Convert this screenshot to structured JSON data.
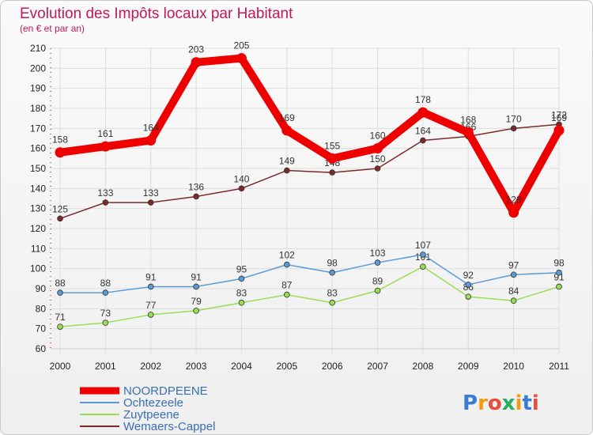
{
  "chart_data": {
    "type": "line",
    "title": "Evolution des Impôts locaux par Habitant",
    "subtitle": "(en € et par an)",
    "x": [
      "2000",
      "2001",
      "2002",
      "2003",
      "2004",
      "2005",
      "2006",
      "2007",
      "2008",
      "2009",
      "2010",
      "2011"
    ],
    "ylim": [
      60,
      210
    ],
    "yticks": [
      60,
      70,
      80,
      90,
      100,
      110,
      120,
      130,
      140,
      150,
      160,
      170,
      180,
      190,
      200,
      210
    ],
    "grid": true,
    "legend_position": "bottom-left",
    "series": [
      {
        "name": "NOORDPEENE",
        "color": "#ee0000",
        "values": [
          158,
          161,
          164,
          203,
          205,
          169,
          155,
          160,
          178,
          168,
          128,
          169
        ]
      },
      {
        "name": "Ochtezeele",
        "color": "#5b9bd5",
        "values": [
          88,
          88,
          91,
          91,
          95,
          102,
          98,
          103,
          107,
          92,
          97,
          98
        ]
      },
      {
        "name": "Zuytpeene",
        "color": "#99dd55",
        "values": [
          71,
          73,
          77,
          79,
          83,
          87,
          83,
          89,
          101,
          86,
          84,
          91
        ]
      },
      {
        "name": "Wemaers-Cappel",
        "color": "#7b2a2a",
        "values": [
          125,
          133,
          133,
          136,
          140,
          149,
          148,
          150,
          164,
          166,
          170,
          172
        ]
      }
    ]
  },
  "logo": {
    "text": "Proxiti",
    "letter_colors": [
      "#3a7bd5",
      "#f39c12",
      "#e74c3c",
      "#27ae60",
      "#f39c12",
      "#3a7bd5",
      "#e74c3c"
    ]
  }
}
